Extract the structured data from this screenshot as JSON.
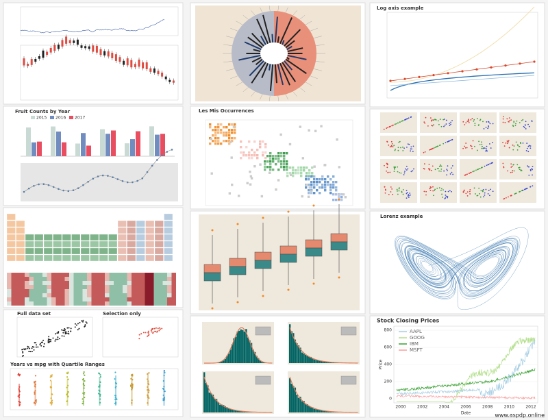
{
  "panels": {
    "fruit": {
      "title": "Fruit Counts by Year",
      "legend": [
        "2015",
        "2016",
        "2017"
      ]
    },
    "full": {
      "title": "Full data set"
    },
    "selection": {
      "title": "Selection only"
    },
    "mpg": {
      "title": "Years vs mpg with Quartile Ranges"
    },
    "lesmis": {
      "title": "Les Mis Occurrences"
    },
    "log": {
      "title": "Log axis example"
    },
    "lorenz": {
      "title": "Lorenz example"
    },
    "stock": {
      "title": "Stock Closing Prices",
      "legend": [
        "AAPL",
        "GOOG",
        "IBM",
        "MSFT"
      ],
      "yticks": [
        "0",
        "200",
        "400",
        "600",
        "800"
      ],
      "xticks": [
        "2000",
        "2002",
        "2004",
        "2006",
        "2008",
        "2010",
        "2012"
      ],
      "xlabel": "Date",
      "ylabel": "Price"
    }
  },
  "watermark": "www.aspdp.online"
}
